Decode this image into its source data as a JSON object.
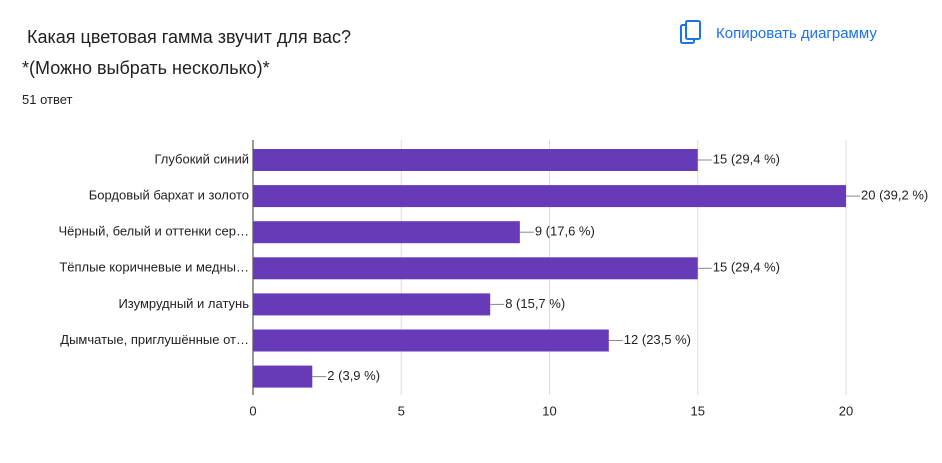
{
  "copy_button": "Копировать диаграмму",
  "chart_data": {
    "type": "bar",
    "orientation": "horizontal",
    "title": " Какая цветовая гамма звучит для вас?\n*(Можно выбрать несколько)*",
    "subtitle": "51 ответ",
    "categories": [
      "Глубокий синий",
      "Бордовый бархат и золото",
      "Чёрный, белый и оттенки сер…",
      "Тёплые коричневые и медны…",
      "Изумрудный и латунь",
      "Дымчатые, приглушённые от…",
      null
    ],
    "values": [
      15,
      20,
      9,
      15,
      8,
      12,
      2
    ],
    "value_labels": [
      "15 (29,4 %)",
      "20 (39,2 %)",
      "9 (17,6 %)",
      "15 (29,4 %)",
      "8 (15,7 %)",
      "12 (23,5 %)",
      "2 (3,9 %)"
    ],
    "color": "#673ab7",
    "xlim": [
      0,
      20
    ],
    "xticks": [
      0,
      5,
      10,
      15,
      20
    ],
    "grid": true
  }
}
